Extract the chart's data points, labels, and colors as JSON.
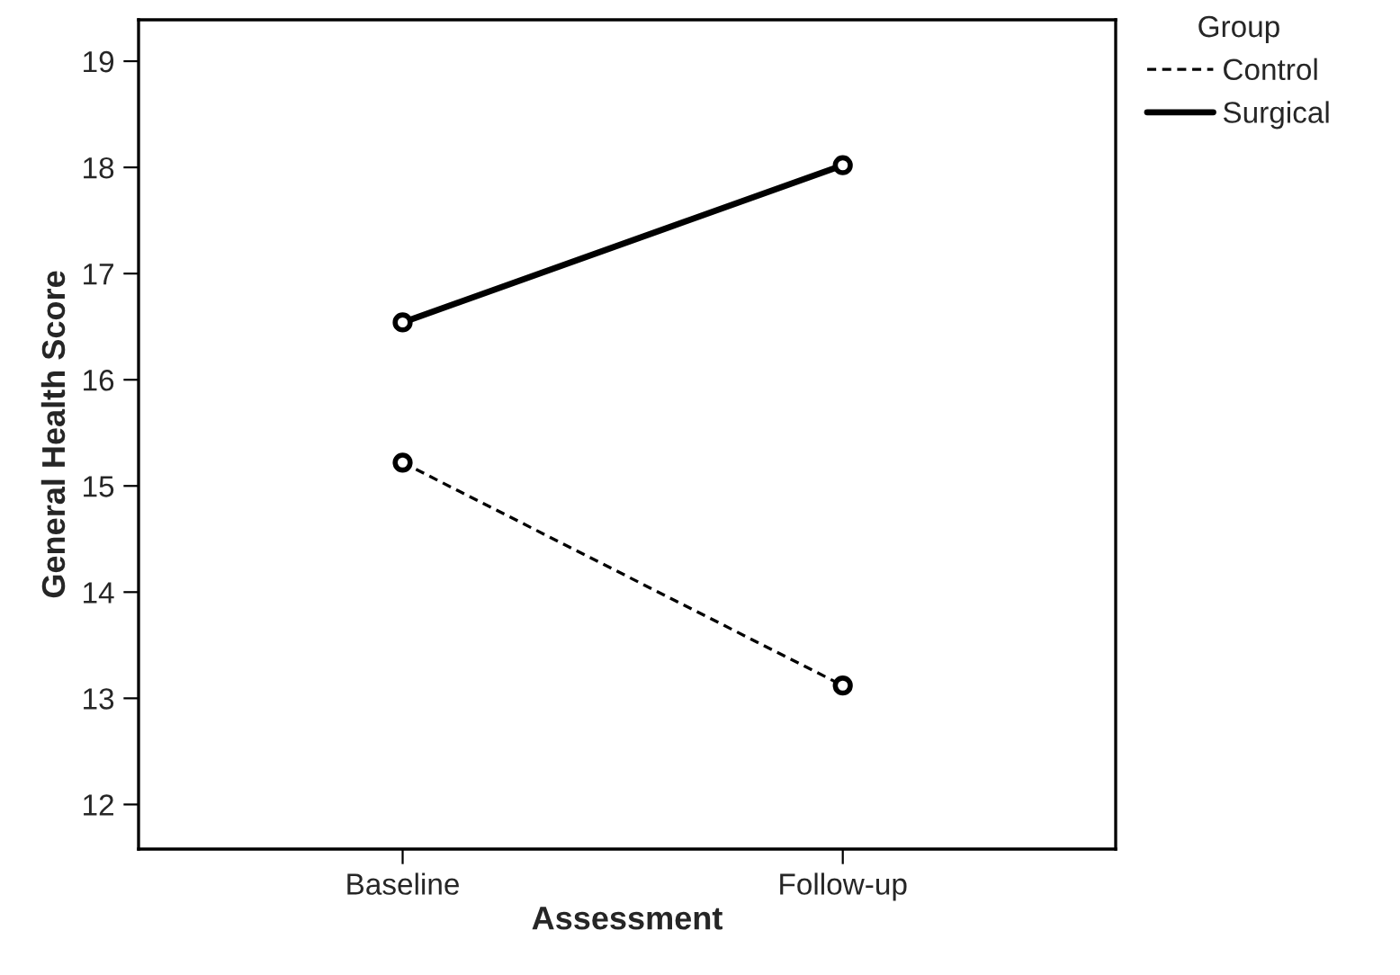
{
  "chart_data": {
    "type": "line",
    "xlabel": "Assessment",
    "ylabel": "General Health Score",
    "legend_title": "Group",
    "categories": [
      "Baseline",
      "Follow-up"
    ],
    "series": [
      {
        "name": "Control",
        "color": "#000000",
        "values": [
          15.22,
          13.12
        ],
        "line_style": "dashed"
      },
      {
        "name": "Surgical",
        "color": "#000000",
        "values": [
          16.54,
          18.02
        ],
        "line_style": "solid"
      }
    ],
    "ylim": [
      11.58,
      19.39
    ],
    "yticks": [
      12,
      13,
      14,
      15,
      16,
      17,
      18,
      19
    ],
    "marker": "circle",
    "grid": false,
    "legend": "top right"
  }
}
